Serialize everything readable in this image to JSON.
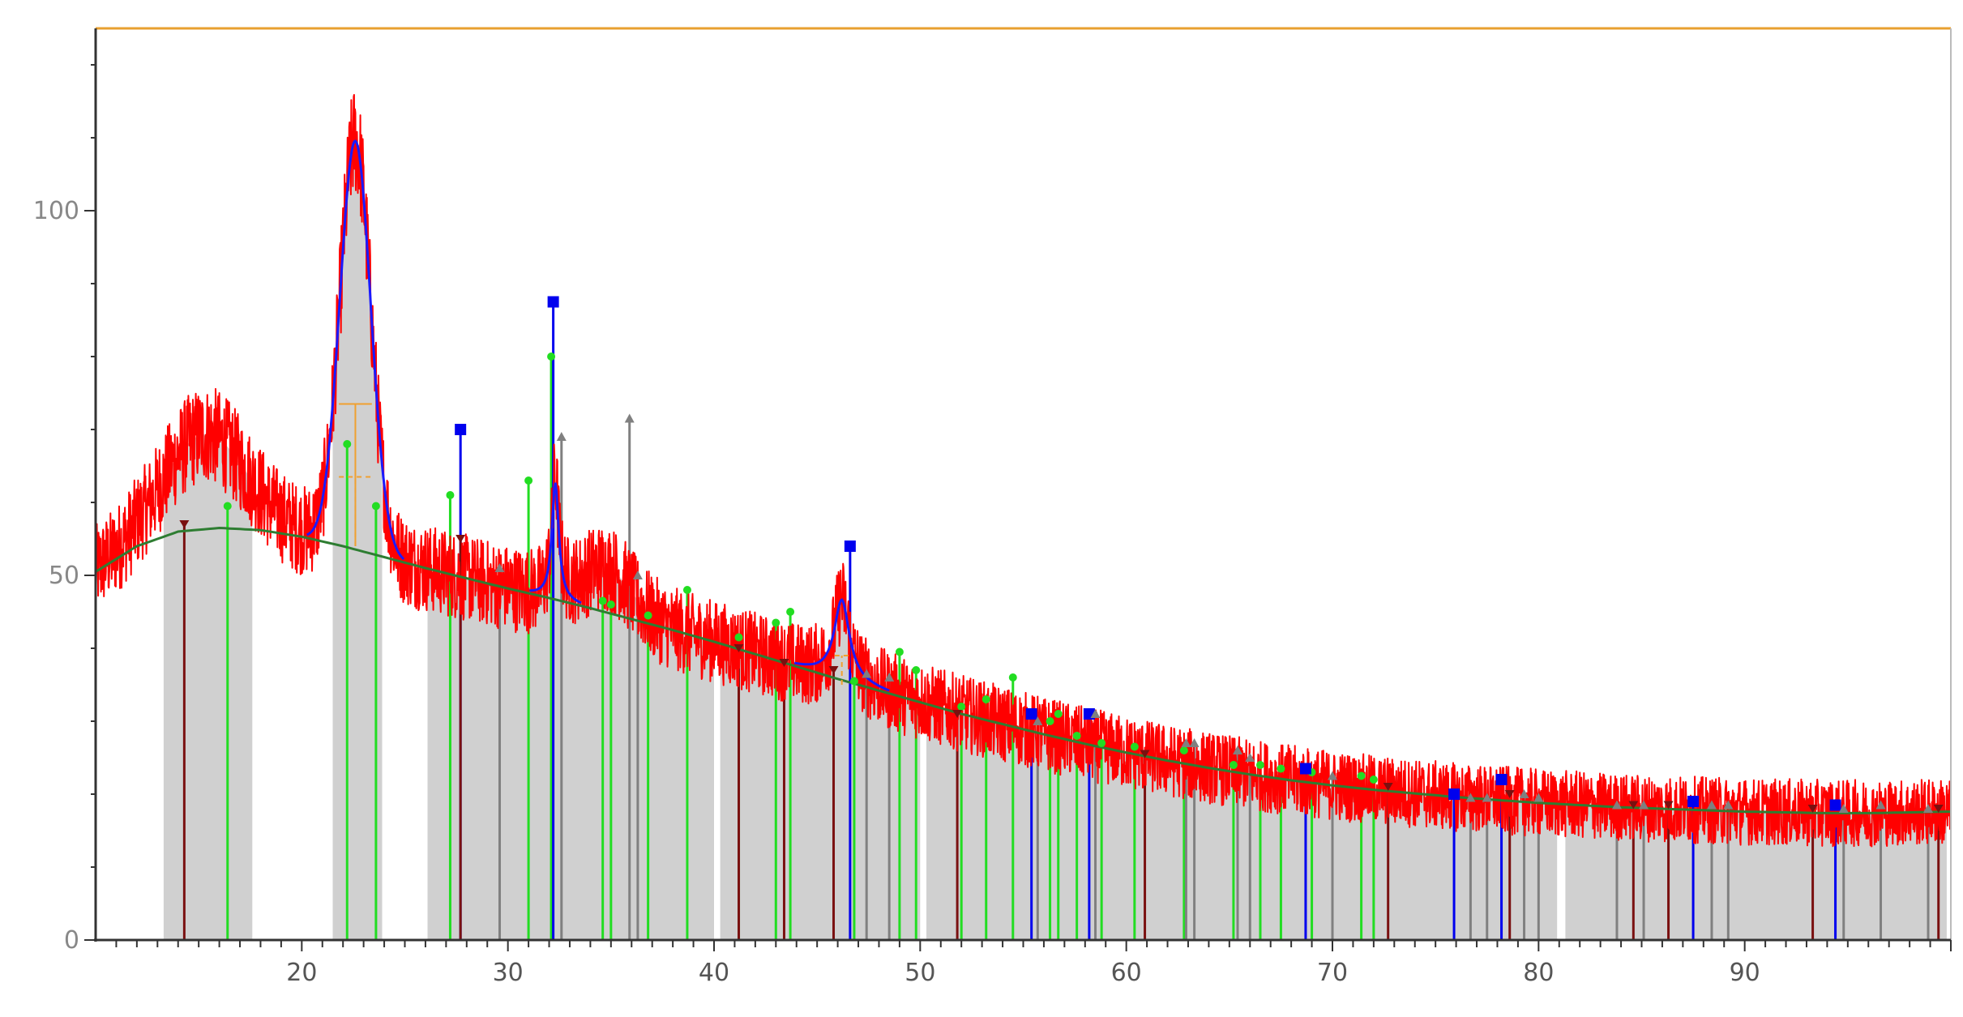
{
  "chart_data": {
    "type": "line",
    "title": "",
    "xlabel": "",
    "ylabel": "",
    "xlim": [
      10,
      100
    ],
    "ylim": [
      0,
      125
    ],
    "x_ticks": [
      {
        "value": 20,
        "label": "20"
      },
      {
        "value": 30,
        "label": "30"
      },
      {
        "value": 40,
        "label": "40"
      },
      {
        "value": 50,
        "label": "50"
      },
      {
        "value": 60,
        "label": "60"
      },
      {
        "value": 70,
        "label": "70"
      },
      {
        "value": 80,
        "label": "80"
      },
      {
        "value": 90,
        "label": "90"
      }
    ],
    "y_ticks": [
      {
        "value": 0,
        "label": "0"
      },
      {
        "value": 50,
        "label": "50"
      },
      {
        "value": 100,
        "label": "100"
      }
    ],
    "grid": false,
    "legend": "none",
    "colors": {
      "observed": "#ff0000",
      "fit": "#1a1aff",
      "background": "#2e7d32",
      "fill": "#d0d0d0",
      "marker_green": "#22dd22",
      "marker_blue": "#0000ee",
      "marker_darkred": "#7a1010",
      "marker_gray": "#808080",
      "crosshair": "#f0a030"
    },
    "shaded_regions": [
      [
        13.3,
        17.6
      ],
      [
        21.5,
        23.9
      ],
      [
        26.1,
        40.0
      ],
      [
        40.3,
        50.0
      ],
      [
        50.3,
        80.9
      ],
      [
        81.3,
        99.8
      ]
    ],
    "background_curve": {
      "x": [
        10,
        12,
        14,
        16,
        18,
        20,
        22,
        24,
        26,
        28,
        30,
        32,
        34,
        36,
        38,
        40,
        42,
        44,
        46,
        48,
        50,
        52,
        54,
        56,
        58,
        60,
        62,
        64,
        66,
        68,
        70,
        72,
        74,
        76,
        78,
        80,
        82,
        84,
        86,
        88,
        90,
        92,
        94,
        96,
        98,
        99.8
      ],
      "y": [
        50.5,
        54.0,
        56.0,
        56.5,
        56.2,
        55.3,
        54.0,
        52.5,
        51.0,
        49.6,
        48.2,
        46.9,
        45.5,
        44.0,
        42.5,
        40.9,
        39.2,
        37.5,
        35.8,
        34.2,
        32.6,
        31.0,
        29.6,
        28.2,
        26.9,
        25.7,
        24.6,
        23.6,
        22.7,
        21.9,
        21.2,
        20.6,
        20.1,
        19.6,
        19.2,
        18.8,
        18.5,
        18.2,
        18.0,
        17.8,
        17.6,
        17.5,
        17.4,
        17.4,
        17.5,
        17.6
      ]
    },
    "peaks": [
      {
        "pos": 22.6,
        "height": 56,
        "width": 0.75,
        "shape": "gauss"
      },
      {
        "pos": 32.3,
        "height": 16,
        "width": 0.2,
        "shape": "lorentz"
      },
      {
        "pos": 46.2,
        "height": 11,
        "width": 0.45,
        "shape": "lorentz"
      },
      {
        "pos": 15.3,
        "height": 13,
        "width": 2.0,
        "shape": "gauss",
        "observed_only": true
      },
      {
        "pos": 34.8,
        "height": 6,
        "width": 1.2,
        "shape": "gauss",
        "observed_only": true
      }
    ],
    "markers": {
      "green": [
        {
          "x": 16.4,
          "y": 59.5
        },
        {
          "x": 22.2,
          "y": 68.0
        },
        {
          "x": 23.6,
          "y": 59.5
        },
        {
          "x": 27.2,
          "y": 61.0
        },
        {
          "x": 31.0,
          "y": 63.0
        },
        {
          "x": 32.1,
          "y": 80.0
        },
        {
          "x": 34.6,
          "y": 46.5
        },
        {
          "x": 35.0,
          "y": 46.0
        },
        {
          "x": 36.8,
          "y": 44.5
        },
        {
          "x": 38.7,
          "y": 48.0
        },
        {
          "x": 41.2,
          "y": 41.5
        },
        {
          "x": 43.0,
          "y": 43.5
        },
        {
          "x": 43.7,
          "y": 45.0
        },
        {
          "x": 46.8,
          "y": 35.5
        },
        {
          "x": 49.0,
          "y": 39.5
        },
        {
          "x": 49.8,
          "y": 37.0
        },
        {
          "x": 52.0,
          "y": 32.0
        },
        {
          "x": 53.2,
          "y": 33.0
        },
        {
          "x": 54.5,
          "y": 36.0
        },
        {
          "x": 56.3,
          "y": 30.0
        },
        {
          "x": 56.7,
          "y": 31.0
        },
        {
          "x": 57.6,
          "y": 28.0
        },
        {
          "x": 58.8,
          "y": 27.0
        },
        {
          "x": 60.4,
          "y": 26.5
        },
        {
          "x": 62.8,
          "y": 26.0
        },
        {
          "x": 65.2,
          "y": 24.0
        },
        {
          "x": 66.5,
          "y": 24.0
        },
        {
          "x": 67.5,
          "y": 23.5
        },
        {
          "x": 69.0,
          "y": 23.0
        },
        {
          "x": 71.4,
          "y": 22.5
        },
        {
          "x": 72.0,
          "y": 22.0
        }
      ],
      "blue": [
        {
          "x": 27.7,
          "y": 70.0
        },
        {
          "x": 32.2,
          "y": 87.5
        },
        {
          "x": 46.6,
          "y": 54.0
        },
        {
          "x": 55.4,
          "y": 31.0
        },
        {
          "x": 58.2,
          "y": 31.0
        },
        {
          "x": 68.7,
          "y": 23.5
        },
        {
          "x": 75.9,
          "y": 20.0
        },
        {
          "x": 78.2,
          "y": 22.0
        },
        {
          "x": 87.5,
          "y": 19.0
        },
        {
          "x": 94.4,
          "y": 18.5
        }
      ],
      "darkred": [
        {
          "x": 14.3,
          "y": 57.0
        },
        {
          "x": 27.7,
          "y": 55.0
        },
        {
          "x": 41.2,
          "y": 40.0
        },
        {
          "x": 43.4,
          "y": 38.0
        },
        {
          "x": 45.8,
          "y": 37.0
        },
        {
          "x": 51.8,
          "y": 31.0
        },
        {
          "x": 60.9,
          "y": 25.5
        },
        {
          "x": 72.7,
          "y": 21.0
        },
        {
          "x": 78.6,
          "y": 20.0
        },
        {
          "x": 84.6,
          "y": 18.5
        },
        {
          "x": 86.3,
          "y": 18.5
        },
        {
          "x": 93.3,
          "y": 18.0
        },
        {
          "x": 99.4,
          "y": 18.0
        }
      ],
      "gray": [
        {
          "x": 29.6,
          "y": 51.0
        },
        {
          "x": 32.6,
          "y": 69.0
        },
        {
          "x": 35.9,
          "y": 71.5
        },
        {
          "x": 36.3,
          "y": 50.0
        },
        {
          "x": 47.4,
          "y": 36.5
        },
        {
          "x": 48.5,
          "y": 36.0
        },
        {
          "x": 55.7,
          "y": 30.0
        },
        {
          "x": 58.5,
          "y": 31.0
        },
        {
          "x": 62.9,
          "y": 27.0
        },
        {
          "x": 63.3,
          "y": 27.0
        },
        {
          "x": 65.4,
          "y": 26.0
        },
        {
          "x": 66.0,
          "y": 25.0
        },
        {
          "x": 70.0,
          "y": 22.5
        },
        {
          "x": 76.7,
          "y": 19.5
        },
        {
          "x": 77.5,
          "y": 19.5
        },
        {
          "x": 79.3,
          "y": 20.0
        },
        {
          "x": 80.0,
          "y": 19.5
        },
        {
          "x": 83.8,
          "y": 18.5
        },
        {
          "x": 85.1,
          "y": 18.5
        },
        {
          "x": 88.4,
          "y": 18.5
        },
        {
          "x": 89.2,
          "y": 18.5
        },
        {
          "x": 94.8,
          "y": 18.0
        },
        {
          "x": 96.6,
          "y": 18.5
        },
        {
          "x": 98.9,
          "y": 18.0
        }
      ]
    },
    "crosshairs": [
      {
        "x": 22.6,
        "y_from": 54,
        "y_to": 73.5,
        "halfwidth": 0.8
      },
      {
        "x": 22.6,
        "y_from": 54,
        "y_to": 63.5,
        "halfwidth": 0.8
      },
      {
        "x": 46.2,
        "y_from": 35,
        "y_to": 39.0,
        "halfwidth": 0.35
      }
    ]
  }
}
